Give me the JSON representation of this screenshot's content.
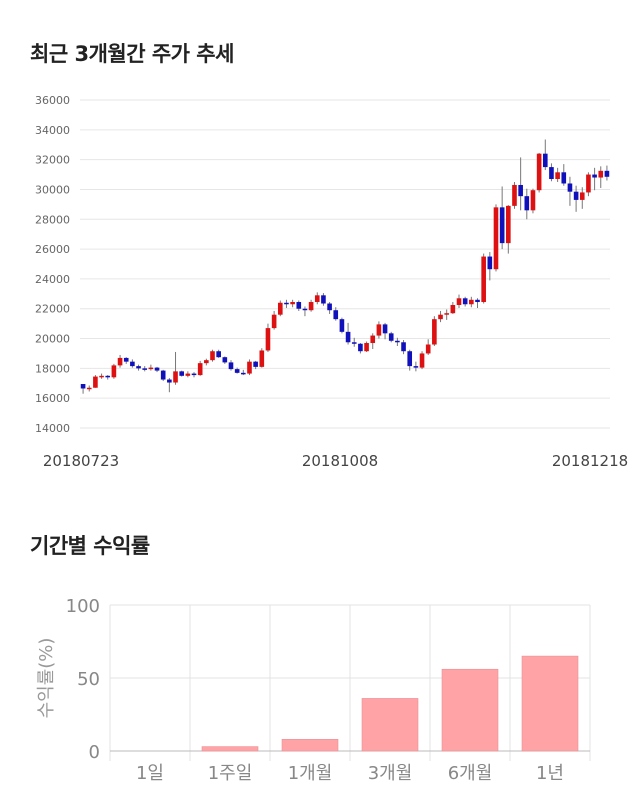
{
  "headings": {
    "price_trend": "최근 3개월간 주가 추세",
    "period_returns": "기간별 수익률"
  },
  "colors": {
    "up": "#dd1111",
    "down": "#1111bb",
    "bar": "#ffa3a6",
    "grid": "#e6e6e6"
  },
  "chart_data": [
    {
      "type": "candlestick",
      "ylim": [
        14000,
        36000
      ],
      "yticks": [
        "36000",
        "34000",
        "32000",
        "30000",
        "28000",
        "26000",
        "24000",
        "22000",
        "20000",
        "18000",
        "16000",
        "14000"
      ],
      "x_labels": [
        "20180723",
        "20181008",
        "20181218"
      ],
      "ohlc": [
        [
          16950,
          16950,
          16300,
          16650
        ],
        [
          16650,
          16850,
          16450,
          16700
        ],
        [
          16700,
          17550,
          16700,
          17450
        ],
        [
          17450,
          17650,
          17300,
          17500
        ],
        [
          17500,
          17550,
          17250,
          17400
        ],
        [
          17400,
          18300,
          17300,
          18200
        ],
        [
          18200,
          18900,
          18050,
          18700
        ],
        [
          18700,
          18750,
          18300,
          18450
        ],
        [
          18450,
          18600,
          18050,
          18150
        ],
        [
          18150,
          18250,
          17850,
          18000
        ],
        [
          18000,
          18150,
          17800,
          17950
        ],
        [
          17950,
          18250,
          17850,
          18050
        ],
        [
          18050,
          18100,
          17750,
          17850
        ],
        [
          17850,
          17900,
          17150,
          17250
        ],
        [
          17250,
          17350,
          16400,
          17050
        ],
        [
          17050,
          19100,
          16900,
          17800
        ],
        [
          17800,
          17850,
          17450,
          17500
        ],
        [
          17500,
          17800,
          17400,
          17650
        ],
        [
          17650,
          17750,
          17400,
          17550
        ],
        [
          17550,
          18500,
          17500,
          18350
        ],
        [
          18350,
          18650,
          18200,
          18550
        ],
        [
          18550,
          19250,
          18450,
          19150
        ],
        [
          19150,
          19250,
          18700,
          18750
        ],
        [
          18750,
          18800,
          18300,
          18400
        ],
        [
          18400,
          18550,
          17850,
          17950
        ],
        [
          17950,
          18050,
          17650,
          17700
        ],
        [
          17700,
          17900,
          17550,
          17650
        ],
        [
          17650,
          18600,
          17550,
          18450
        ],
        [
          18450,
          18500,
          17950,
          18100
        ],
        [
          18100,
          19350,
          18050,
          19200
        ],
        [
          19200,
          21000,
          19100,
          20700
        ],
        [
          20700,
          21850,
          20600,
          21600
        ],
        [
          21600,
          22550,
          21500,
          22400
        ],
        [
          22400,
          22600,
          22050,
          22300
        ],
        [
          22300,
          22600,
          22100,
          22450
        ],
        [
          22450,
          22550,
          21850,
          22000
        ],
        [
          22000,
          22150,
          21500,
          21900
        ],
        [
          21900,
          22600,
          21800,
          22450
        ],
        [
          22450,
          23100,
          22300,
          22900
        ],
        [
          22900,
          23050,
          22200,
          22350
        ],
        [
          22350,
          22450,
          21650,
          21900
        ],
        [
          21900,
          22100,
          21200,
          21300
        ],
        [
          21300,
          21400,
          20350,
          20450
        ],
        [
          20450,
          21050,
          19600,
          19750
        ],
        [
          19750,
          20050,
          19450,
          19650
        ],
        [
          19650,
          19700,
          19000,
          19150
        ],
        [
          19150,
          19800,
          19100,
          19700
        ],
        [
          19700,
          20350,
          19300,
          20200
        ],
        [
          20200,
          21150,
          20000,
          20950
        ],
        [
          20950,
          21050,
          19950,
          20350
        ],
        [
          20350,
          20450,
          19750,
          19850
        ],
        [
          19850,
          20050,
          19500,
          19750
        ],
        [
          19750,
          19900,
          18950,
          19150
        ],
        [
          19150,
          19250,
          17850,
          18150
        ],
        [
          18150,
          18450,
          17800,
          18050
        ],
        [
          18050,
          19150,
          17950,
          19000
        ],
        [
          19000,
          19950,
          18900,
          19600
        ],
        [
          19600,
          21500,
          19500,
          21300
        ],
        [
          21300,
          21850,
          21100,
          21600
        ],
        [
          21600,
          21950,
          21250,
          21700
        ],
        [
          21700,
          22450,
          21650,
          22250
        ],
        [
          22250,
          22950,
          22050,
          22700
        ],
        [
          22700,
          22800,
          22150,
          22300
        ],
        [
          22300,
          22800,
          22100,
          22600
        ],
        [
          22600,
          22700,
          22050,
          22450
        ],
        [
          22450,
          25700,
          22350,
          25500
        ],
        [
          25500,
          25800,
          23900,
          24650
        ],
        [
          24650,
          29000,
          24500,
          28800
        ],
        [
          28800,
          30200,
          26000,
          26400
        ],
        [
          26400,
          28950,
          25700,
          28900
        ],
        [
          28900,
          30500,
          28700,
          30300
        ],
        [
          30300,
          32150,
          28600,
          29550
        ],
        [
          29550,
          30050,
          28000,
          28600
        ],
        [
          28600,
          30050,
          28400,
          29950
        ],
        [
          29950,
          32450,
          29800,
          32400
        ],
        [
          32400,
          33350,
          31300,
          31500
        ],
        [
          31500,
          31750,
          30550,
          30700
        ],
        [
          30700,
          31450,
          30500,
          31150
        ],
        [
          31150,
          31700,
          30250,
          30400
        ],
        [
          30400,
          30850,
          28900,
          29850
        ],
        [
          29850,
          30250,
          28500,
          29300
        ],
        [
          29300,
          30150,
          28700,
          29800
        ],
        [
          29800,
          31150,
          29550,
          31000
        ],
        [
          31000,
          31450,
          29950,
          30800
        ],
        [
          30800,
          31550,
          30100,
          31250
        ],
        [
          31250,
          31600,
          30600,
          30850
        ]
      ]
    },
    {
      "type": "bar",
      "categories": [
        "1일",
        "1주일",
        "1개월",
        "3개월",
        "6개월",
        "1년"
      ],
      "values": [
        0,
        3,
        8,
        36,
        56,
        65
      ],
      "ylim": [
        0,
        100
      ],
      "yticks": [
        "100",
        "50",
        "0"
      ],
      "ylabel": "수익률(%)"
    }
  ]
}
